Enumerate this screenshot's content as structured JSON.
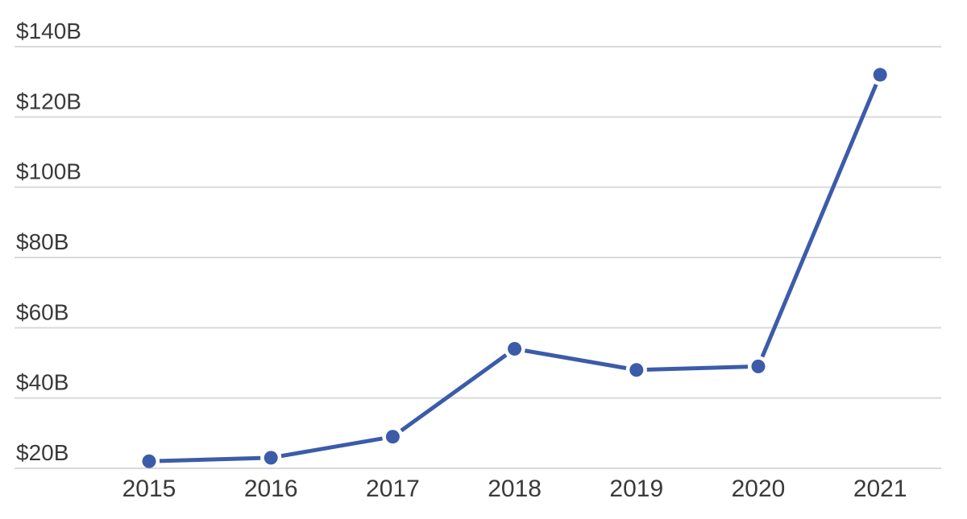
{
  "page": {
    "background_color": "#ffffff"
  },
  "chart_data": {
    "type": "line",
    "title": "",
    "xlabel": "",
    "ylabel": "",
    "unit": "billions USD",
    "value_prefix": "$",
    "value_suffix": "B",
    "categories": [
      "2015",
      "2016",
      "2017",
      "2018",
      "2019",
      "2020",
      "2021"
    ],
    "values": [
      22,
      23,
      29,
      54,
      48,
      49,
      132
    ],
    "y_ticks": [
      {
        "value": 140,
        "label": "$140B"
      },
      {
        "value": 120,
        "label": "$120B"
      },
      {
        "value": 100,
        "label": "$100B"
      },
      {
        "value": 80,
        "label": "$80B"
      },
      {
        "value": 60,
        "label": "$60B"
      },
      {
        "value": 40,
        "label": "$40B"
      },
      {
        "value": 20,
        "label": "$20B"
      }
    ],
    "ylim": [
      18,
      153
    ],
    "grid": "horizontal-only",
    "legend": "none",
    "marker_style": "filled-circle",
    "colors": {
      "line": "#3c5ca9",
      "marker": "#3c5ca9",
      "gridline": "#d9d9d9",
      "tick_text": "#3a3a3a",
      "background": "#ffffff"
    }
  }
}
